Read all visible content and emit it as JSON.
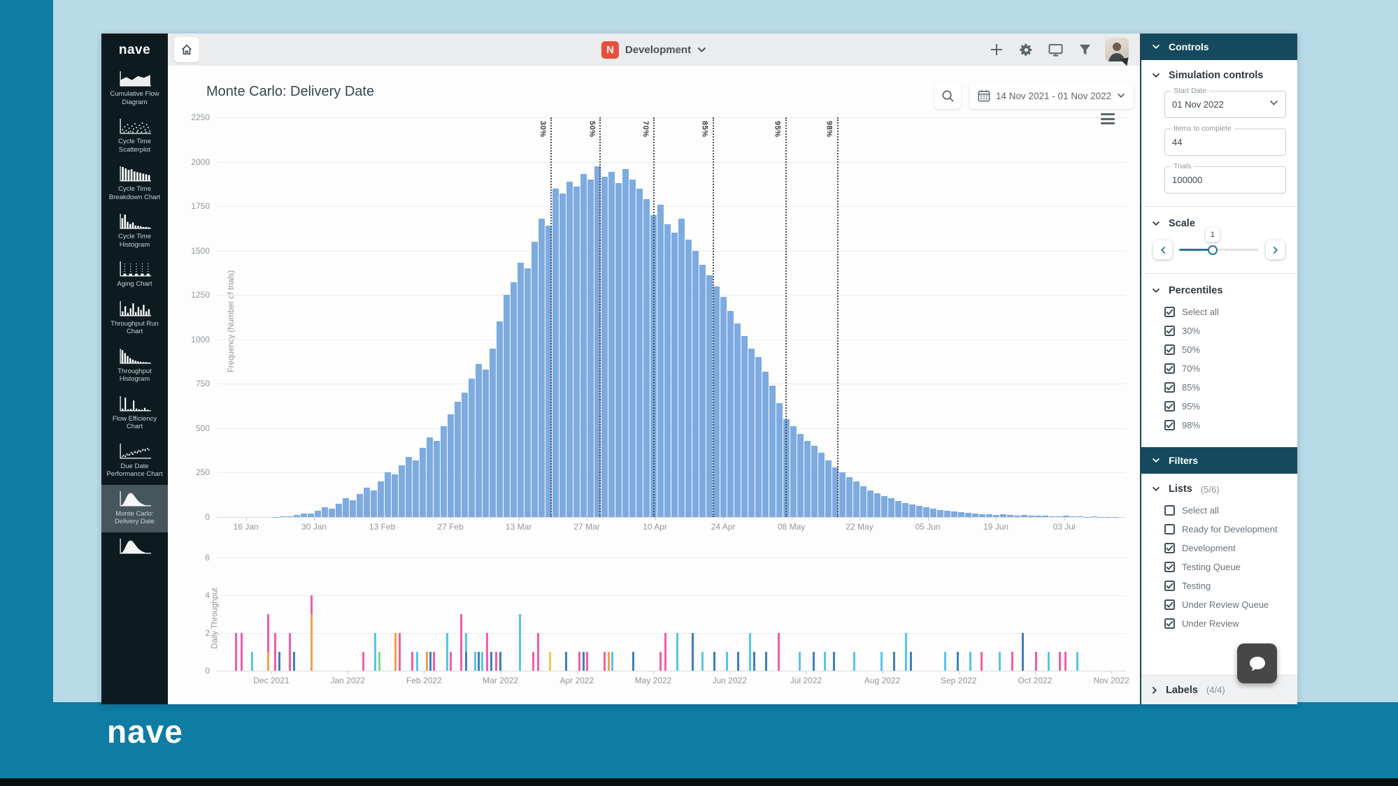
{
  "frame": {
    "brand": "nave"
  },
  "sidebar": {
    "logo": "nave",
    "items": [
      {
        "label": "Cumulative Flow Diagram",
        "icon": "area-chart-icon",
        "selected": false
      },
      {
        "label": "Cycle Time Scatterplot",
        "icon": "scatterplot-icon",
        "selected": false
      },
      {
        "label": "Cycle Time Breakdown Chart",
        "icon": "breakdown-bars-icon",
        "selected": false
      },
      {
        "label": "Cycle Time Histogram",
        "icon": "histogram-icon",
        "selected": false
      },
      {
        "label": "Aging Chart",
        "icon": "aging-chart-icon",
        "selected": false
      },
      {
        "label": "Throughput Run Chart",
        "icon": "run-chart-icon",
        "selected": false
      },
      {
        "label": "Throughput Histogram",
        "icon": "histogram-decay-icon",
        "selected": false
      },
      {
        "label": "Flow Efficiency Chart",
        "icon": "spikes-icon",
        "selected": false
      },
      {
        "label": "Due Date Performance Chart",
        "icon": "scatter-trend-icon",
        "selected": false
      },
      {
        "label": "Monte Carlo: Delivery Date",
        "icon": "bell-curve-icon",
        "selected": true
      },
      {
        "label": "",
        "icon": "bell-curve-icon",
        "selected": false
      }
    ]
  },
  "topbar": {
    "board_initial": "N",
    "board_label": "Development"
  },
  "chart_header": {
    "title": "Monte Carlo: Delivery Date",
    "date_range": "14 Nov 2021 - 01 Nov 2022"
  },
  "chart_data": [
    {
      "type": "bar",
      "title": "Monte Carlo: Delivery Date",
      "ylabel": "Frequency (Number of trials)",
      "ylim": [
        0,
        2250
      ],
      "yticks": [
        0,
        250,
        500,
        750,
        1000,
        1250,
        1500,
        1750,
        2000,
        2250
      ],
      "xticks": [
        "16 Jan",
        "30 Jan",
        "13 Feb",
        "27 Feb",
        "13 Mar",
        "27 Mar",
        "10 Apr",
        "24 Apr",
        "08 May",
        "22 May",
        "05 Jun",
        "19 Jun",
        "03 Jul"
      ],
      "bar_color": "#7dabe1",
      "grid": true,
      "legend": "none",
      "percentiles": [
        {
          "label": "30%",
          "pos": 0.367
        },
        {
          "label": "50%",
          "pos": 0.421
        },
        {
          "label": "70%",
          "pos": 0.48
        },
        {
          "label": "85%",
          "pos": 0.545
        },
        {
          "label": "95%",
          "pos": 0.625
        },
        {
          "label": "98%",
          "pos": 0.682
        }
      ],
      "values": [
        0,
        0,
        0,
        0,
        0,
        0,
        0,
        0,
        2,
        3,
        5,
        12,
        20,
        18,
        35,
        55,
        48,
        75,
        105,
        95,
        130,
        165,
        150,
        200,
        250,
        240,
        290,
        340,
        320,
        390,
        450,
        430,
        510,
        580,
        650,
        700,
        780,
        860,
        830,
        950,
        1100,
        1250,
        1320,
        1430,
        1400,
        1550,
        1680,
        1640,
        1850,
        1820,
        1890,
        1860,
        1930,
        1900,
        1975,
        1915,
        1945,
        1880,
        1960,
        1900,
        1850,
        1790,
        1700,
        1760,
        1650,
        1600,
        1680,
        1560,
        1500,
        1420,
        1360,
        1300,
        1240,
        1160,
        1090,
        1020,
        950,
        900,
        820,
        740,
        640,
        550,
        510,
        470,
        430,
        400,
        360,
        320,
        280,
        250,
        225,
        200,
        175,
        150,
        135,
        120,
        105,
        92,
        80,
        70,
        62,
        54,
        47,
        40,
        35,
        30,
        26,
        23,
        20,
        17,
        14,
        12,
        15,
        10,
        8,
        12,
        7,
        9,
        6,
        5,
        4,
        6,
        3,
        4,
        2,
        3,
        2,
        1,
        1,
        0
      ]
    },
    {
      "type": "bar",
      "title": "Daily Throughput",
      "ylabel": "Daily Throughput",
      "ylim": [
        0,
        6
      ],
      "yticks": [
        0,
        2,
        4,
        6
      ],
      "xticks": [
        "Dec 2021",
        "Jan 2022",
        "Feb 2022",
        "Mar 2022",
        "Apr 2022",
        "May 2022",
        "Jun 2022",
        "Jul 2022",
        "Aug 2022",
        "Sep 2022",
        "Oct 2022",
        "Nov 2022"
      ],
      "grid": true,
      "colors": {
        "pink": "#f25da5",
        "lightblue": "#54c6ea",
        "blue": "#3f7fc1",
        "orange": "#f0a14e",
        "green": "#7ed98b",
        "yellow": "#eec84c"
      },
      "bars": [
        {
          "x": 0.02,
          "s": [
            [
              "pink",
              2
            ]
          ]
        },
        {
          "x": 0.026,
          "s": [
            [
              "pink",
              2
            ]
          ]
        },
        {
          "x": 0.038,
          "s": [
            [
              "lightblue",
              1
            ]
          ]
        },
        {
          "x": 0.055,
          "s": [
            [
              "orange",
              1
            ],
            [
              "pink",
              2
            ]
          ]
        },
        {
          "x": 0.063,
          "s": [
            [
              "pink",
              2
            ]
          ]
        },
        {
          "x": 0.068,
          "s": [
            [
              "blue",
              1
            ]
          ]
        },
        {
          "x": 0.079,
          "s": [
            [
              "pink",
              2
            ]
          ]
        },
        {
          "x": 0.084,
          "s": [
            [
              "blue",
              1
            ]
          ]
        },
        {
          "x": 0.103,
          "s": [
            [
              "orange",
              3
            ],
            [
              "pink",
              1
            ]
          ]
        },
        {
          "x": 0.16,
          "s": [
            [
              "pink",
              1
            ]
          ]
        },
        {
          "x": 0.173,
          "s": [
            [
              "lightblue",
              2
            ]
          ]
        },
        {
          "x": 0.178,
          "s": [
            [
              "green",
              1
            ]
          ]
        },
        {
          "x": 0.195,
          "s": [
            [
              "orange",
              2
            ]
          ]
        },
        {
          "x": 0.2,
          "s": [
            [
              "pink",
              2
            ]
          ]
        },
        {
          "x": 0.214,
          "s": [
            [
              "pink",
              1
            ]
          ]
        },
        {
          "x": 0.219,
          "s": [
            [
              "lightblue",
              1
            ]
          ]
        },
        {
          "x": 0.23,
          "s": [
            [
              "orange",
              1
            ]
          ]
        },
        {
          "x": 0.234,
          "s": [
            [
              "blue",
              1
            ]
          ]
        },
        {
          "x": 0.238,
          "s": [
            [
              "pink",
              1
            ]
          ]
        },
        {
          "x": 0.252,
          "s": [
            [
              "lightblue",
              2
            ]
          ]
        },
        {
          "x": 0.256,
          "s": [
            [
              "pink",
              1
            ]
          ]
        },
        {
          "x": 0.268,
          "s": [
            [
              "pink",
              3
            ]
          ]
        },
        {
          "x": 0.273,
          "s": [
            [
              "blue",
              1
            ],
            [
              "lightblue",
              1
            ]
          ]
        },
        {
          "x": 0.283,
          "s": [
            [
              "lightblue",
              1
            ]
          ]
        },
        {
          "x": 0.287,
          "s": [
            [
              "blue",
              1
            ]
          ]
        },
        {
          "x": 0.291,
          "s": [
            [
              "lightblue",
              1
            ]
          ]
        },
        {
          "x": 0.296,
          "s": [
            [
              "pink",
              2
            ]
          ]
        },
        {
          "x": 0.301,
          "s": [
            [
              "blue",
              1
            ]
          ]
        },
        {
          "x": 0.306,
          "s": [
            [
              "pink",
              1
            ]
          ]
        },
        {
          "x": 0.311,
          "s": [
            [
              "blue",
              1
            ]
          ]
        },
        {
          "x": 0.332,
          "s": [
            [
              "lightblue",
              3
            ]
          ]
        },
        {
          "x": 0.347,
          "s": [
            [
              "pink",
              1
            ]
          ]
        },
        {
          "x": 0.352,
          "s": [
            [
              "pink",
              2
            ]
          ]
        },
        {
          "x": 0.365,
          "s": [
            [
              "yellow",
              1
            ]
          ]
        },
        {
          "x": 0.383,
          "s": [
            [
              "blue",
              1
            ]
          ]
        },
        {
          "x": 0.398,
          "s": [
            [
              "pink",
              1
            ]
          ]
        },
        {
          "x": 0.402,
          "s": [
            [
              "blue",
              1
            ]
          ]
        },
        {
          "x": 0.406,
          "s": [
            [
              "pink",
              1
            ]
          ]
        },
        {
          "x": 0.425,
          "s": [
            [
              "pink",
              1
            ]
          ]
        },
        {
          "x": 0.43,
          "s": [
            [
              "orange",
              1
            ]
          ]
        },
        {
          "x": 0.434,
          "s": [
            [
              "lightblue",
              1
            ]
          ]
        },
        {
          "x": 0.457,
          "s": [
            [
              "blue",
              1
            ]
          ]
        },
        {
          "x": 0.487,
          "s": [
            [
              "pink",
              1
            ]
          ]
        },
        {
          "x": 0.492,
          "s": [
            [
              "pink",
              2
            ]
          ]
        },
        {
          "x": 0.505,
          "s": [
            [
              "lightblue",
              2
            ]
          ]
        },
        {
          "x": 0.522,
          "s": [
            [
              "blue",
              2
            ]
          ]
        },
        {
          "x": 0.533,
          "s": [
            [
              "lightblue",
              1
            ]
          ]
        },
        {
          "x": 0.546,
          "s": [
            [
              "blue",
              1
            ]
          ]
        },
        {
          "x": 0.56,
          "s": [
            [
              "lightblue",
              1
            ]
          ]
        },
        {
          "x": 0.572,
          "s": [
            [
              "blue",
              1
            ]
          ]
        },
        {
          "x": 0.585,
          "s": [
            [
              "lightblue",
              2
            ]
          ]
        },
        {
          "x": 0.59,
          "s": [
            [
              "blue",
              1
            ]
          ]
        },
        {
          "x": 0.603,
          "s": [
            [
              "blue",
              1
            ]
          ]
        },
        {
          "x": 0.617,
          "s": [
            [
              "pink",
              2
            ]
          ]
        },
        {
          "x": 0.64,
          "s": [
            [
              "lightblue",
              1
            ]
          ]
        },
        {
          "x": 0.655,
          "s": [
            [
              "blue",
              1
            ]
          ]
        },
        {
          "x": 0.668,
          "s": [
            [
              "lightblue",
              1
            ]
          ]
        },
        {
          "x": 0.678,
          "s": [
            [
              "blue",
              1
            ]
          ]
        },
        {
          "x": 0.7,
          "s": [
            [
              "lightblue",
              1
            ]
          ]
        },
        {
          "x": 0.73,
          "s": [
            [
              "lightblue",
              1
            ]
          ]
        },
        {
          "x": 0.744,
          "s": [
            [
              "blue",
              1
            ]
          ]
        },
        {
          "x": 0.757,
          "s": [
            [
              "lightblue",
              2
            ]
          ]
        },
        {
          "x": 0.762,
          "s": [
            [
              "blue",
              1
            ]
          ]
        },
        {
          "x": 0.8,
          "s": [
            [
              "lightblue",
              1
            ]
          ]
        },
        {
          "x": 0.814,
          "s": [
            [
              "blue",
              1
            ]
          ]
        },
        {
          "x": 0.828,
          "s": [
            [
              "lightblue",
              1
            ]
          ]
        },
        {
          "x": 0.84,
          "s": [
            [
              "pink",
              1
            ]
          ]
        },
        {
          "x": 0.86,
          "s": [
            [
              "lightblue",
              1
            ]
          ]
        },
        {
          "x": 0.874,
          "s": [
            [
              "pink",
              1
            ]
          ]
        },
        {
          "x": 0.885,
          "s": [
            [
              "blue",
              2
            ]
          ]
        },
        {
          "x": 0.9,
          "s": [
            [
              "pink",
              1
            ]
          ]
        },
        {
          "x": 0.914,
          "s": [
            [
              "lightblue",
              1
            ]
          ]
        },
        {
          "x": 0.926,
          "s": [
            [
              "pink",
              1
            ]
          ]
        },
        {
          "x": 0.932,
          "s": [
            [
              "pink",
              1
            ]
          ]
        },
        {
          "x": 0.945,
          "s": [
            [
              "lightblue",
              1
            ]
          ]
        }
      ]
    }
  ],
  "controls": {
    "header": "Controls",
    "simulation": {
      "title": "Simulation controls",
      "fields": [
        {
          "label": "Start Date",
          "value": "01 Nov 2022",
          "chevron": true
        },
        {
          "label": "Items to complete",
          "value": "44",
          "chevron": false
        },
        {
          "label": "Trials",
          "value": "100000",
          "chevron": false
        }
      ]
    },
    "scale": {
      "title": "Scale",
      "value": "1",
      "fill_pct": 42
    },
    "percentiles": {
      "title": "Percentiles",
      "options": [
        {
          "label": "Select all",
          "checked": true
        },
        {
          "label": "30%",
          "checked": true
        },
        {
          "label": "50%",
          "checked": true
        },
        {
          "label": "70%",
          "checked": true
        },
        {
          "label": "85%",
          "checked": true
        },
        {
          "label": "95%",
          "checked": true
        },
        {
          "label": "98%",
          "checked": true
        }
      ]
    },
    "filters_header": "Filters",
    "lists": {
      "title": "Lists",
      "count": "(5/6)",
      "options": [
        {
          "label": "Select all",
          "checked": false
        },
        {
          "label": "Ready for Development",
          "checked": false
        },
        {
          "label": "Development",
          "checked": true
        },
        {
          "label": "Testing Queue",
          "checked": true
        },
        {
          "label": "Testing",
          "checked": true
        },
        {
          "label": "Under Review Queue",
          "checked": true
        },
        {
          "label": "Under Review",
          "checked": true
        }
      ]
    },
    "labels_footer": {
      "label": "Labels",
      "count": "(4/4)"
    }
  }
}
